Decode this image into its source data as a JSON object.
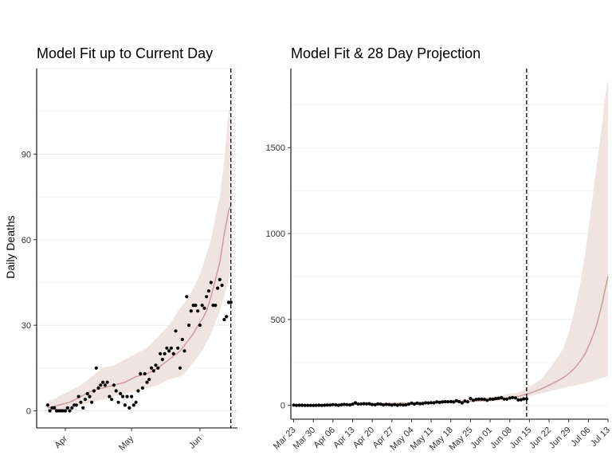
{
  "chart_data": [
    {
      "type": "line",
      "title": "Model Fit up to Current Day",
      "xlabel": "",
      "ylabel": "Daily Deaths",
      "x_ticks": [
        "Apr",
        "May",
        "Jun"
      ],
      "y_ticks": [
        0,
        30,
        60,
        90
      ],
      "ylim": [
        -6,
        120
      ],
      "grid": "horizontal",
      "current_day_marker": "dashed vertical line",
      "series": [
        {
          "kind": "ribbon",
          "x_days": [
            0,
            5,
            10,
            15,
            20,
            25,
            30,
            35,
            40,
            45,
            50,
            55,
            60,
            62,
            64,
            66,
            68,
            70,
            72,
            74,
            76,
            78,
            80,
            81,
            82,
            83
          ],
          "lower": [
            0,
            0,
            1,
            2,
            3,
            4,
            5,
            6,
            7,
            8,
            9,
            11,
            12,
            13,
            15,
            17,
            19,
            21,
            24,
            27,
            31,
            35,
            40,
            43,
            46,
            50
          ],
          "upper": [
            3,
            5,
            7,
            9,
            12,
            15,
            16,
            18,
            20,
            22,
            26,
            30,
            36,
            38,
            40,
            43,
            46,
            50,
            55,
            60,
            68,
            75,
            88,
            97,
            105,
            110
          ]
        },
        {
          "kind": "median",
          "x_days": [
            0,
            5,
            10,
            15,
            20,
            25,
            30,
            35,
            40,
            45,
            50,
            55,
            60,
            62,
            64,
            66,
            68,
            70,
            72,
            74,
            76,
            78,
            80,
            81,
            82,
            83
          ],
          "values": [
            1,
            2,
            3,
            5,
            7,
            8,
            9,
            10,
            12,
            13,
            15,
            18,
            21,
            23,
            25,
            27,
            30,
            32,
            35,
            40,
            46,
            52,
            62,
            66,
            70,
            72
          ]
        },
        {
          "kind": "points",
          "name": "",
          "x_days": [
            0,
            1,
            2,
            3,
            4,
            5,
            6,
            7,
            8,
            9,
            10,
            11,
            12,
            13,
            14,
            15,
            16,
            17,
            18,
            19,
            20,
            21,
            22,
            23,
            24,
            25,
            26,
            27,
            28,
            29,
            30,
            31,
            32,
            33,
            34,
            35,
            36,
            37,
            38,
            39,
            40,
            41,
            42,
            43,
            44,
            45,
            46,
            47,
            48,
            49,
            50,
            51,
            52,
            53,
            54,
            55,
            56,
            57,
            58,
            59,
            60,
            61,
            62,
            63,
            64,
            65,
            66,
            67,
            68,
            69,
            70,
            71,
            72,
            73,
            74,
            75,
            76,
            77,
            78,
            79,
            80,
            81,
            82,
            83
          ],
          "values": [
            2,
            0,
            1,
            1,
            0,
            0,
            0,
            0,
            0,
            1,
            0,
            1,
            2,
            2,
            5,
            3,
            1,
            4,
            6,
            5,
            3,
            7,
            15,
            8,
            9,
            10,
            9,
            10,
            5,
            4,
            9,
            7,
            3,
            6,
            5,
            2,
            5,
            1,
            5,
            2,
            3,
            7,
            13,
            8,
            13,
            10,
            11,
            15,
            14,
            16,
            15,
            20,
            18,
            20,
            22,
            21,
            22,
            20,
            28,
            22,
            15,
            25,
            21,
            40,
            30,
            35,
            37,
            37,
            35,
            30,
            37,
            36,
            40,
            42,
            45,
            37,
            37,
            43,
            46,
            44,
            32,
            33,
            38,
            38
          ]
        }
      ]
    },
    {
      "type": "line",
      "title": "Model Fit & 28 Day Projection",
      "xlabel": "",
      "ylabel": "",
      "x_ticks": [
        "Mar 23",
        "Mar 30",
        "Apr 06",
        "Apr 13",
        "Apr 20",
        "Apr 27",
        "May 04",
        "May 11",
        "May 18",
        "May 25",
        "Jun 01",
        "Jun 08",
        "Jun 15",
        "Jun 22",
        "Jun 29",
        "Jul 06",
        "Jul 13"
      ],
      "y_ticks": [
        0,
        500,
        1000,
        1500
      ],
      "ylim": [
        -80,
        1960
      ],
      "grid": "horizontal",
      "current_day_marker": "dashed vertical line",
      "series": [
        {
          "kind": "ribbon",
          "x_days": [
            0,
            10,
            20,
            30,
            40,
            50,
            60,
            70,
            75,
            80,
            84,
            88,
            92,
            96,
            98,
            100,
            102,
            104,
            106,
            108,
            110,
            111,
            112
          ],
          "lower": [
            0,
            2,
            5,
            7,
            9,
            12,
            18,
            24,
            30,
            40,
            55,
            70,
            85,
            100,
            110,
            115,
            122,
            130,
            140,
            150,
            160,
            165,
            170
          ],
          "upper": [
            3,
            7,
            12,
            16,
            20,
            27,
            37,
            50,
            62,
            75,
            110,
            150,
            230,
            330,
            420,
            550,
            700,
            900,
            1150,
            1400,
            1650,
            1800,
            1900
          ]
        },
        {
          "kind": "median",
          "x_days": [
            0,
            10,
            20,
            30,
            40,
            50,
            60,
            70,
            75,
            80,
            84,
            88,
            92,
            96,
            98,
            100,
            102,
            104,
            106,
            108,
            110,
            111,
            112
          ],
          "values": [
            1,
            3,
            7,
            9,
            12,
            15,
            21,
            30,
            38,
            52,
            70,
            95,
            125,
            160,
            185,
            215,
            255,
            305,
            380,
            470,
            600,
            680,
            750
          ]
        },
        {
          "kind": "points",
          "name": "",
          "x_days": [
            0,
            1,
            2,
            3,
            4,
            5,
            6,
            7,
            8,
            9,
            10,
            11,
            12,
            13,
            14,
            15,
            16,
            17,
            18,
            19,
            20,
            21,
            22,
            23,
            24,
            25,
            26,
            27,
            28,
            29,
            30,
            31,
            32,
            33,
            34,
            35,
            36,
            37,
            38,
            39,
            40,
            41,
            42,
            43,
            44,
            45,
            46,
            47,
            48,
            49,
            50,
            51,
            52,
            53,
            54,
            55,
            56,
            57,
            58,
            59,
            60,
            61,
            62,
            63,
            64,
            65,
            66,
            67,
            68,
            69,
            70,
            71,
            72,
            73,
            74,
            75,
            76,
            77,
            78,
            79,
            80,
            81,
            82,
            83
          ],
          "values": [
            2,
            0,
            1,
            1,
            0,
            0,
            0,
            0,
            0,
            1,
            0,
            1,
            2,
            2,
            5,
            3,
            1,
            4,
            6,
            5,
            3,
            7,
            15,
            8,
            9,
            10,
            9,
            10,
            5,
            4,
            9,
            7,
            3,
            6,
            5,
            2,
            5,
            1,
            5,
            2,
            3,
            7,
            13,
            8,
            13,
            10,
            11,
            15,
            14,
            16,
            15,
            20,
            18,
            20,
            22,
            21,
            22,
            20,
            28,
            22,
            15,
            25,
            21,
            40,
            30,
            35,
            37,
            37,
            35,
            30,
            37,
            36,
            40,
            42,
            45,
            37,
            37,
            43,
            46,
            44,
            32,
            33,
            38,
            38
          ]
        }
      ]
    }
  ],
  "colors": {
    "ribbon": "#f0e4e2",
    "median": "#c89a96",
    "points": "#000000",
    "grid": "#ebebeb",
    "axis": "#000000"
  }
}
